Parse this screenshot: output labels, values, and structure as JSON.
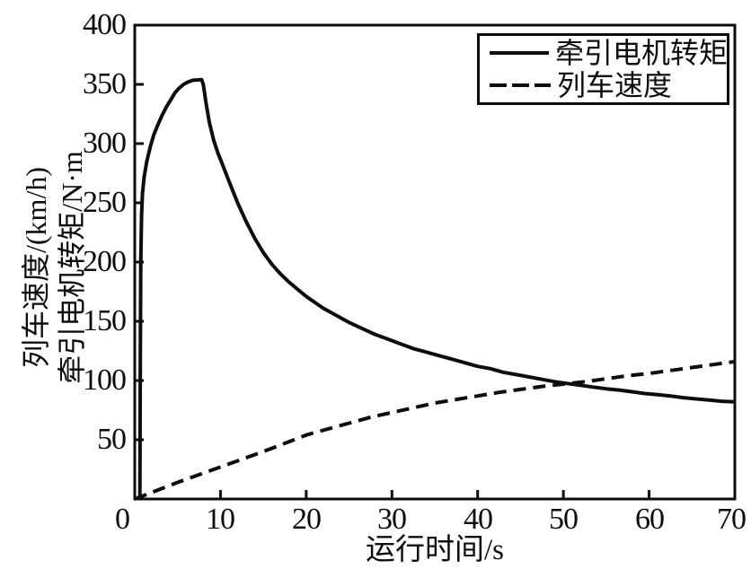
{
  "figure": {
    "bg": "#ffffff",
    "ink": "#0d0d0d"
  },
  "chart_data": {
    "type": "line",
    "title": "",
    "xlabel": "运行时间/s",
    "ylabel_lines": [
      "列车速度/(km/h)",
      "牵引电机转矩/N·m"
    ],
    "xlim": [
      0,
      70
    ],
    "ylim": [
      0,
      400
    ],
    "xticks": [
      0,
      10,
      20,
      30,
      40,
      50,
      60,
      70
    ],
    "yticks": [
      50,
      100,
      150,
      200,
      250,
      300,
      350,
      400
    ],
    "grid": false,
    "legend_position": "top-right-inside",
    "series": [
      {
        "name": "牵引电机转矩",
        "style": "solid",
        "color": "#0d0d0d",
        "points": [
          [
            0.6,
            0
          ],
          [
            0.65,
            120
          ],
          [
            0.7,
            200
          ],
          [
            0.8,
            240
          ],
          [
            0.9,
            258
          ],
          [
            1.1,
            272
          ],
          [
            1.4,
            285
          ],
          [
            1.8,
            297
          ],
          [
            2.2,
            307
          ],
          [
            2.7,
            316
          ],
          [
            3.2,
            324
          ],
          [
            3.7,
            331
          ],
          [
            4.2,
            337
          ],
          [
            4.7,
            343
          ],
          [
            5.2,
            347
          ],
          [
            5.7,
            350
          ],
          [
            6.2,
            352
          ],
          [
            6.8,
            353.5
          ],
          [
            7.8,
            354
          ],
          [
            8.0,
            350
          ],
          [
            8.3,
            335
          ],
          [
            8.7,
            318
          ],
          [
            9.2,
            303
          ],
          [
            9.7,
            292
          ],
          [
            10.2,
            283
          ],
          [
            11,
            268
          ],
          [
            12,
            250
          ],
          [
            13,
            234
          ],
          [
            14,
            220
          ],
          [
            15,
            208
          ],
          [
            16,
            198
          ],
          [
            17,
            190
          ],
          [
            18,
            183
          ],
          [
            19,
            177
          ],
          [
            20,
            171
          ],
          [
            21,
            166
          ],
          [
            22,
            161
          ],
          [
            23,
            157
          ],
          [
            24,
            153
          ],
          [
            25,
            149
          ],
          [
            26.5,
            144
          ],
          [
            28,
            139
          ],
          [
            29.5,
            135
          ],
          [
            31,
            131
          ],
          [
            32.5,
            127
          ],
          [
            34,
            124
          ],
          [
            35.5,
            121
          ],
          [
            37,
            118
          ],
          [
            38.5,
            115
          ],
          [
            40,
            112
          ],
          [
            41.5,
            110
          ],
          [
            43,
            107
          ],
          [
            44.5,
            105
          ],
          [
            46,
            103
          ],
          [
            47.5,
            101
          ],
          [
            49,
            99
          ],
          [
            50.5,
            97.5
          ],
          [
            52,
            96
          ],
          [
            53.5,
            94.5
          ],
          [
            55,
            93
          ],
          [
            56.5,
            92
          ],
          [
            58,
            90.5
          ],
          [
            59.5,
            89
          ],
          [
            61,
            88
          ],
          [
            62.5,
            87
          ],
          [
            64,
            85.5
          ],
          [
            65.5,
            84.5
          ],
          [
            67,
            83.5
          ],
          [
            68.5,
            82.5
          ],
          [
            70,
            82
          ]
        ]
      },
      {
        "name": "列车速度",
        "style": "dashed",
        "color": "#0d0d0d",
        "points": [
          [
            0,
            0
          ],
          [
            2.5,
            7
          ],
          [
            5,
            14
          ],
          [
            7.5,
            20.5
          ],
          [
            10,
            27
          ],
          [
            12.5,
            33.5
          ],
          [
            15,
            40
          ],
          [
            17.5,
            47
          ],
          [
            20,
            54
          ],
          [
            22.5,
            59
          ],
          [
            25,
            64
          ],
          [
            27.5,
            69
          ],
          [
            30,
            73
          ],
          [
            32.5,
            77
          ],
          [
            35,
            81
          ],
          [
            37.5,
            84
          ],
          [
            40,
            87
          ],
          [
            42.5,
            90
          ],
          [
            45,
            92.5
          ],
          [
            47.5,
            95
          ],
          [
            50,
            97
          ],
          [
            52.5,
            99
          ],
          [
            55,
            101.5
          ],
          [
            57.5,
            104
          ],
          [
            60,
            106
          ],
          [
            62.5,
            108.5
          ],
          [
            65,
            111
          ],
          [
            67.5,
            113.5
          ],
          [
            70,
            116
          ]
        ]
      }
    ]
  }
}
